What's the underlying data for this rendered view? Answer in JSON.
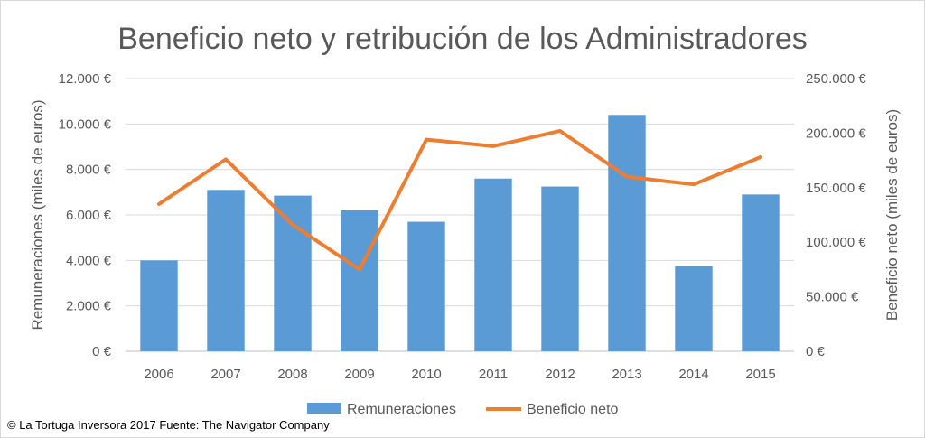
{
  "chart_data": {
    "type": "bar",
    "title": "Beneficio neto y retribución de los Administradores",
    "categories": [
      "2006",
      "2007",
      "2008",
      "2009",
      "2010",
      "2011",
      "2012",
      "2013",
      "2014",
      "2015"
    ],
    "series": [
      {
        "name": "Remuneraciones",
        "type": "bar",
        "axis": "left",
        "color": "#5b9bd5",
        "values": [
          4000,
          7100,
          6850,
          6200,
          5700,
          7600,
          7250,
          10400,
          3750,
          6900
        ]
      },
      {
        "name": "Beneficio neto",
        "type": "line",
        "axis": "right",
        "color": "#ed7d31",
        "values": [
          135000,
          176000,
          116000,
          75000,
          194000,
          188000,
          202000,
          160000,
          153000,
          178000
        ]
      }
    ],
    "y_left": {
      "label": "Remuneraciones (miles de euros)",
      "ylim": [
        0,
        12000
      ],
      "ticks": [
        "0 €",
        "2.000 €",
        "4.000 €",
        "6.000 €",
        "8.000 €",
        "10.000 €",
        "12.000 €"
      ]
    },
    "y_right": {
      "label": "Beneficio neto (miles de euros)",
      "ylim": [
        0,
        250000
      ],
      "ticks": [
        "0 €",
        "50.000 €",
        "100.000 €",
        "150.000 €",
        "200.000 €",
        "250.000 €"
      ]
    },
    "grid": true,
    "legend": "bottom"
  },
  "footer": "© La Tortuga Inversora 2017 Fuente: The Navigator Company"
}
